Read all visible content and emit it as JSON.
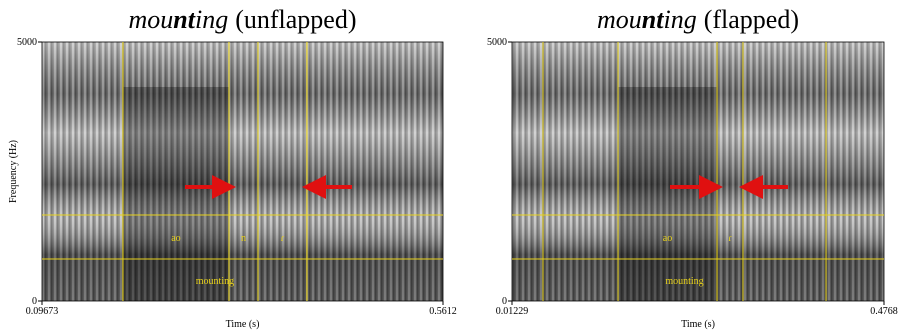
{
  "chart_data": [
    {
      "type": "spectrogram",
      "title_parts": [
        "mou",
        "nt",
        "ing"
      ],
      "title_suffix": "(unflapped)",
      "xlabel": "Time (s)",
      "ylabel": "Frequency (Hz)",
      "xlim": [
        0.09673,
        0.5612
      ],
      "xticks": [
        0.09673,
        0.5612
      ],
      "ylim": [
        0,
        5000
      ],
      "yticks": [
        0,
        5000
      ],
      "phones": [
        {
          "label": "ao",
          "start": 0.1905,
          "end": 0.3133
        },
        {
          "label": "n",
          "start": 0.3133,
          "end": 0.3469
        },
        {
          "label": "ɾ",
          "start": 0.3469,
          "end": 0.4036
        }
      ],
      "word": {
        "label": "mounting",
        "start": 0.1905,
        "end": 0.4036
      }
    },
    {
      "type": "spectrogram",
      "title_parts": [
        "mou",
        "nt",
        "ing"
      ],
      "title_suffix": "(flapped)",
      "xlabel": "Time (s)",
      "xlim": [
        0.01229,
        0.4768
      ],
      "xticks": [
        0.01229,
        0.4768
      ],
      "ylim": [
        0,
        5000
      ],
      "yticks": [
        0,
        5000
      ],
      "phones": [
        {
          "label": "ao",
          "start": 0.1447,
          "end": 0.2683
        },
        {
          "label": "ɾ",
          "start": 0.2683,
          "end": 0.3007
        }
      ],
      "word": {
        "label": "mounting",
        "start": 0.051,
        "end": 0.4044
      }
    }
  ]
}
